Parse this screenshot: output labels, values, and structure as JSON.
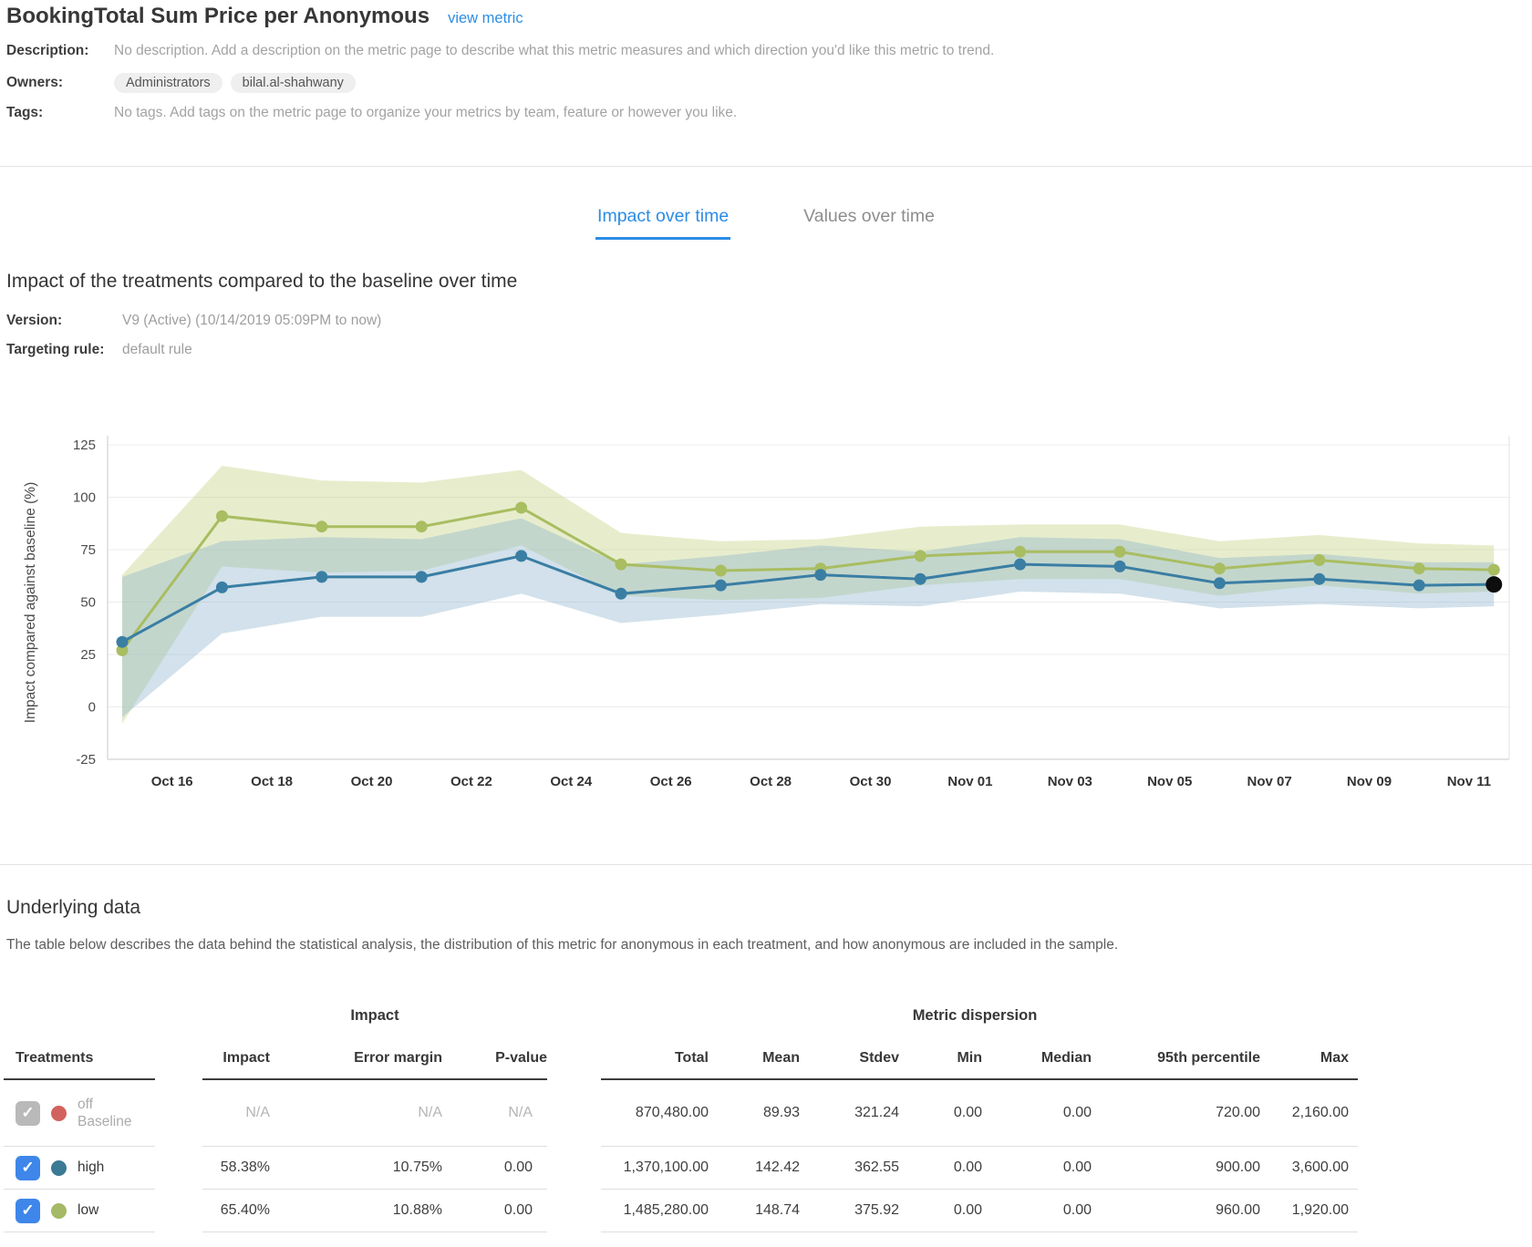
{
  "header": {
    "title": "BookingTotal Sum Price per Anonymous",
    "view_metric_link": "view metric"
  },
  "meta": {
    "description_label": "Description:",
    "description_value": "No description. Add a description on the metric page to describe what this metric measures and which direction you'd like this metric to trend.",
    "owners_label": "Owners:",
    "owners": [
      "Administrators",
      "bilal.al-shahwany"
    ],
    "tags_label": "Tags:",
    "tags_value": "No tags. Add tags on the metric page to organize your metrics by team, feature or however you like."
  },
  "tabs": [
    {
      "label": "Impact over time",
      "active": true
    },
    {
      "label": "Values over time",
      "active": false
    }
  ],
  "impact_section": {
    "heading": "Impact of the treatments compared to the baseline over time",
    "version_label": "Version:",
    "version_value": "V9 (Active) (10/14/2019 05:09PM to now)",
    "targeting_label": "Targeting rule:",
    "targeting_value": "default rule"
  },
  "chart_data": {
    "type": "line",
    "title": "Impact of the treatments compared to the baseline over time",
    "xlabel": "",
    "ylabel": "Impact compared against baseline (%)",
    "ylim": [
      -25,
      125
    ],
    "yticks": [
      125,
      100,
      75,
      50,
      25,
      0,
      -25
    ],
    "grid": true,
    "legend_position": "none",
    "x_unit_days_since": "Oct 15",
    "xtick_days": [
      1,
      3,
      5,
      7,
      9,
      11,
      13,
      15,
      17,
      19,
      21,
      23,
      25,
      27
    ],
    "xtick_labels": [
      "Oct 16",
      "Oct 18",
      "Oct 20",
      "Oct 22",
      "Oct 24",
      "Oct 26",
      "Oct 28",
      "Oct 30",
      "Nov 01",
      "Nov 03",
      "Nov 05",
      "Nov 07",
      "Nov 09",
      "Nov 11"
    ],
    "series": [
      {
        "name": "low",
        "color": "#a9bd61",
        "band_color": "#c9d68d",
        "band_opacity": 0.45,
        "x": [
          0,
          2,
          4,
          6,
          8,
          10,
          12,
          14,
          16,
          18,
          20,
          22,
          24,
          26,
          27.5
        ],
        "values": [
          27,
          91,
          86,
          86,
          95,
          68,
          65,
          66,
          72,
          74,
          74,
          66,
          70,
          66,
          65.4
        ],
        "band_upper": [
          63,
          115,
          108,
          107,
          113,
          83,
          79,
          80,
          86,
          87,
          87,
          79,
          82,
          78,
          77
        ],
        "band_lower": [
          -8,
          67,
          64,
          65,
          77,
          53,
          51,
          52,
          58,
          61,
          61,
          53,
          58,
          54,
          55
        ]
      },
      {
        "name": "high",
        "color": "#3a7ea4",
        "band_color": "#8fb3cc",
        "band_opacity": 0.4,
        "x": [
          0,
          2,
          4,
          6,
          8,
          10,
          12,
          14,
          16,
          18,
          20,
          22,
          24,
          26,
          27.5
        ],
        "values": [
          31,
          57,
          62,
          62,
          72,
          54,
          58,
          63,
          61,
          68,
          67,
          59,
          61,
          58,
          58.4
        ],
        "band_upper": [
          62,
          79,
          81,
          80,
          90,
          68,
          72,
          77,
          74,
          81,
          80,
          71,
          73,
          69,
          69
        ],
        "band_lower": [
          -5,
          35,
          43,
          43,
          54,
          40,
          44,
          49,
          48,
          55,
          54,
          47,
          49,
          47,
          48
        ]
      }
    ],
    "final_point": {
      "series": "high",
      "x": 27.5,
      "value": 58.4,
      "color": "#0d0d0d"
    }
  },
  "underlying": {
    "heading": "Underlying data",
    "description": "The table below describes the data behind the statistical analysis, the distribution of this metric for anonymous in each treatment, and how anonymous are included in the sample."
  },
  "table": {
    "group_impact": "Impact",
    "group_dispersion": "Metric dispersion",
    "treatments_header": "Treatments",
    "impact_columns": [
      "Impact",
      "Error margin",
      "P-value"
    ],
    "dispersion_columns": [
      "Total",
      "Mean",
      "Stdev",
      "Min",
      "Median",
      "95th percentile",
      "Max"
    ],
    "rows": [
      {
        "name": "off",
        "sub": "Baseline",
        "dot_color": "#d2625d",
        "checkbox": "checked-disabled",
        "muted": true,
        "impact": [
          "N/A",
          "N/A",
          "N/A"
        ],
        "dispersion": [
          "870,480.00",
          "89.93",
          "321.24",
          "0.00",
          "0.00",
          "720.00",
          "2,160.00"
        ]
      },
      {
        "name": "high",
        "sub": "",
        "dot_color": "#3a7a94",
        "checkbox": "checked",
        "muted": false,
        "impact": [
          "58.38%",
          "10.75%",
          "0.00"
        ],
        "dispersion": [
          "1,370,100.00",
          "142.42",
          "362.55",
          "0.00",
          "0.00",
          "900.00",
          "3,600.00"
        ]
      },
      {
        "name": "low",
        "sub": "",
        "dot_color": "#a5b966",
        "checkbox": "checked",
        "muted": false,
        "impact": [
          "65.40%",
          "10.88%",
          "0.00"
        ],
        "dispersion": [
          "1,485,280.00",
          "148.74",
          "375.92",
          "0.00",
          "0.00",
          "960.00",
          "1,920.00"
        ]
      }
    ]
  },
  "colors": {
    "accent_blue": "#2b8ce4",
    "checkbox_blue": "#3e86ea",
    "grid": "#ececec",
    "axis": "#c9c9c9"
  }
}
